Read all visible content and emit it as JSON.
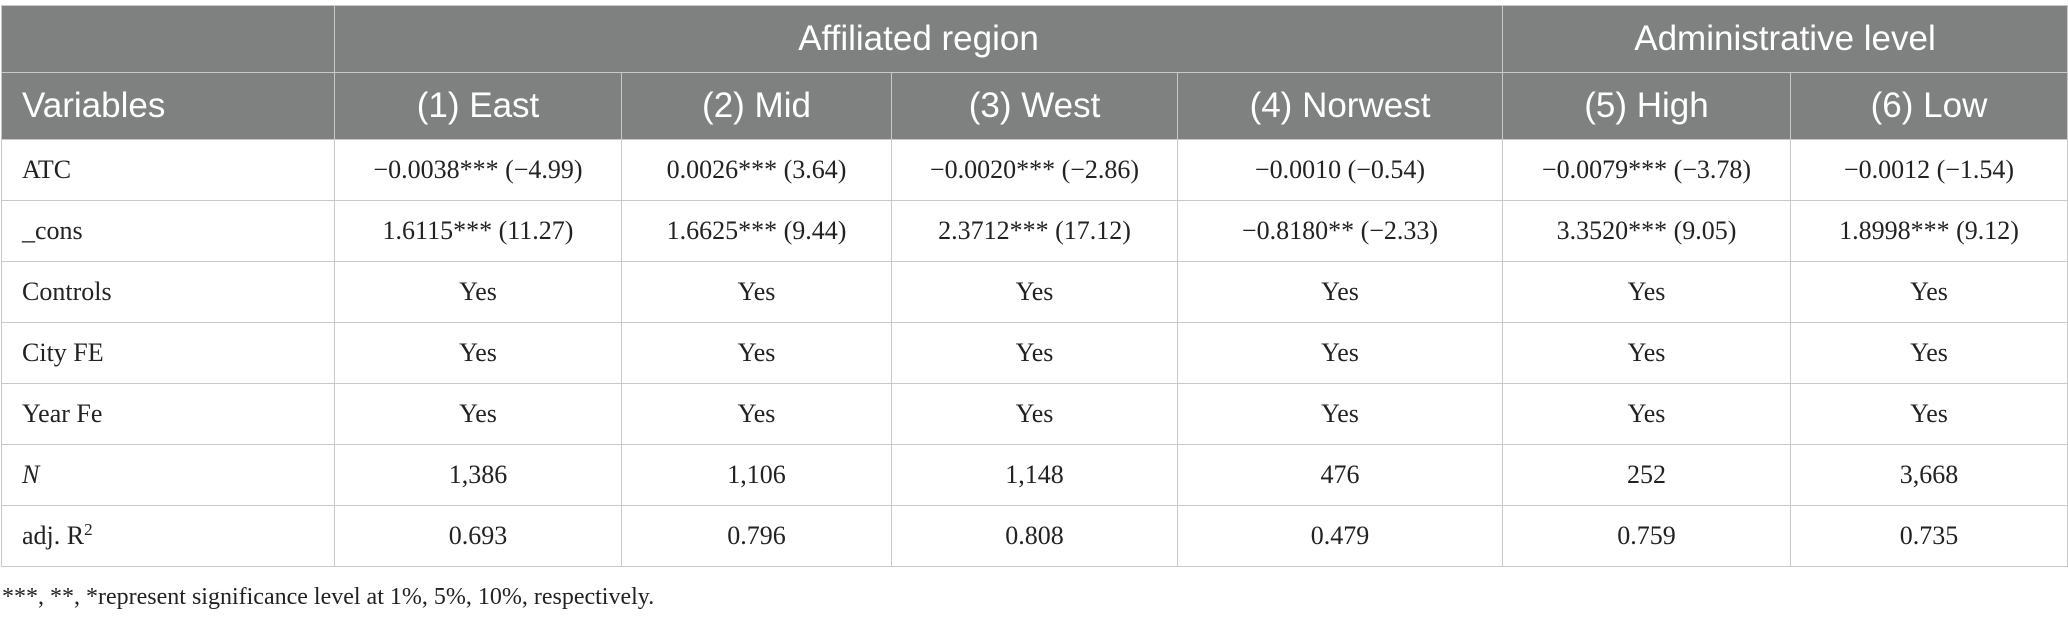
{
  "table": {
    "group_headers": [
      {
        "label": ""
      },
      {
        "label": "Affiliated region"
      },
      {
        "label": "Administrative level"
      }
    ],
    "column_headers": [
      "Variables",
      "(1) East",
      "(2) Mid",
      "(3) West",
      "(4) Norwest",
      "(5) High",
      "(6) Low"
    ],
    "rows": [
      {
        "label": "ATC",
        "cells": [
          "−0.0038*** (−4.99)",
          "0.0026*** (3.64)",
          "−0.0020*** (−2.86)",
          "−0.0010 (−0.54)",
          "−0.0079*** (−3.78)",
          "−0.0012 (−1.54)"
        ]
      },
      {
        "label": "_cons",
        "cells": [
          "1.6115*** (11.27)",
          "1.6625*** (9.44)",
          "2.3712*** (17.12)",
          "−0.8180** (−2.33)",
          "3.3520*** (9.05)",
          "1.8998*** (9.12)"
        ]
      },
      {
        "label": "Controls",
        "cells": [
          "Yes",
          "Yes",
          "Yes",
          "Yes",
          "Yes",
          "Yes"
        ]
      },
      {
        "label": "City FE",
        "cells": [
          "Yes",
          "Yes",
          "Yes",
          "Yes",
          "Yes",
          "Yes"
        ]
      },
      {
        "label": "Year Fe",
        "cells": [
          "Yes",
          "Yes",
          "Yes",
          "Yes",
          "Yes",
          "Yes"
        ]
      },
      {
        "label": "N",
        "cells": [
          "1,386",
          "1,106",
          "1,148",
          "476",
          "252",
          "3,668"
        ]
      },
      {
        "label": "adj. R",
        "label_sup": "2",
        "cells": [
          "0.693",
          "0.796",
          "0.808",
          "0.479",
          "0.759",
          "0.735"
        ]
      }
    ]
  },
  "note": "***, **, *represent significance level at 1%, 5%, 10%, respectively."
}
